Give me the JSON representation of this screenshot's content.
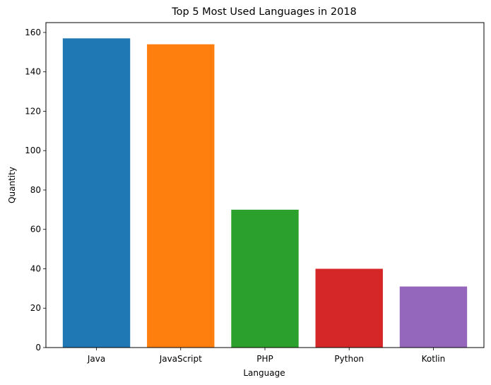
{
  "chart_data": {
    "type": "bar",
    "title": "Top 5 Most Used Languages in 2018",
    "xlabel": "Language",
    "ylabel": "Quantity",
    "categories": [
      "Java",
      "JavaScript",
      "PHP",
      "Python",
      "Kotlin"
    ],
    "values": [
      157,
      154,
      70,
      40,
      31
    ],
    "colors": [
      "#1f77b4",
      "#ff7f0e",
      "#2ca02c",
      "#d62728",
      "#9467bd"
    ],
    "ylim": [
      0,
      165
    ],
    "yticks": [
      0,
      20,
      40,
      60,
      80,
      100,
      120,
      140,
      160
    ],
    "grid": false,
    "legend": "none"
  }
}
